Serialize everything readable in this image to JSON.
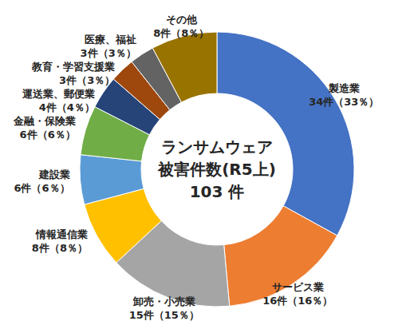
{
  "chart_data": {
    "type": "pie",
    "title": [
      "ランサムウェア",
      "被害件数(R5上)",
      "103 件"
    ],
    "categories": [
      "製造業",
      "サービス業",
      "卸売・小売業",
      "情報通信業",
      "建設業",
      "金融・保険業",
      "運送業、郵便業",
      "教育・学習支援業",
      "医療、福祉",
      "その他"
    ],
    "values": [
      34,
      16,
      15,
      8,
      6,
      6,
      4,
      3,
      3,
      8
    ],
    "value_labels": [
      "34件（33％）",
      "16件（16％）",
      "15件（15％）",
      "8件（8％）",
      "6件（6％）",
      "6件（6％）",
      "4件（4％）",
      "3件（3％）",
      "3件（3％）",
      "8件（8％）"
    ],
    "colors": [
      "#4472c4",
      "#ed7d31",
      "#a5a5a5",
      "#ffc000",
      "#5b9bd5",
      "#70ad47",
      "#264478",
      "#9e480e",
      "#636363",
      "#997300"
    ],
    "data_labels": true
  }
}
